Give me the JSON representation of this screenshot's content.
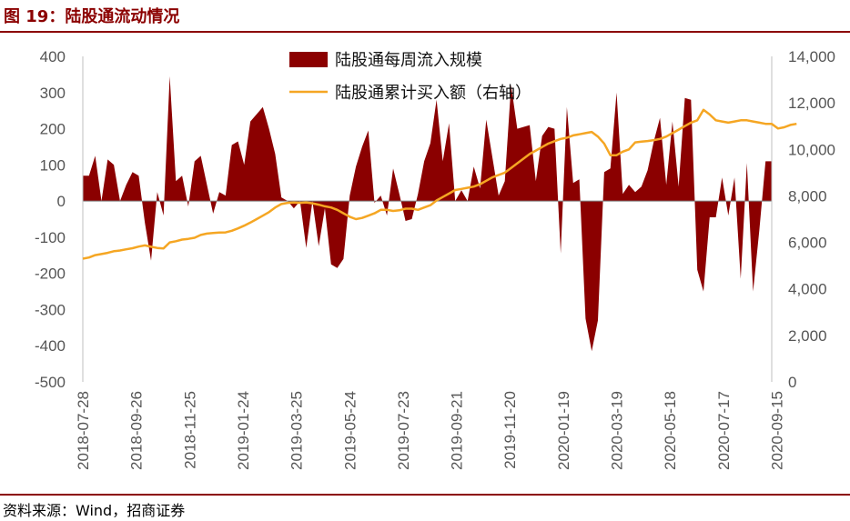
{
  "title": "图 19：陆股通流动情况",
  "source": "资料来源：Wind，招商证券",
  "colors": {
    "bar": "#8b0000",
    "line": "#f5a623",
    "accent": "#8b0000",
    "axis": "#bfbfbf"
  },
  "chart_data": {
    "type": "bar+line",
    "series": [
      {
        "name": "陆股通每周流入规模",
        "type": "bar",
        "axis": "left",
        "values": [
          70,
          70,
          125,
          0,
          115,
          100,
          0,
          45,
          80,
          70,
          -60,
          -165,
          25,
          -40,
          345,
          55,
          70,
          -15,
          110,
          125,
          45,
          -35,
          25,
          15,
          155,
          165,
          100,
          220,
          240,
          260,
          200,
          130,
          10,
          0,
          -20,
          0,
          -130,
          0,
          -125,
          -20,
          -175,
          -185,
          -160,
          15,
          95,
          150,
          195,
          -5,
          15,
          -40,
          90,
          20,
          -55,
          -50,
          20,
          110,
          160,
          280,
          110,
          215,
          0,
          30,
          0,
          95,
          35,
          225,
          120,
          15,
          55,
          320,
          200,
          205,
          210,
          55,
          180,
          205,
          200,
          -145,
          260,
          50,
          60,
          -325,
          -415,
          -330,
          80,
          90,
          300,
          20,
          45,
          25,
          40,
          85,
          165,
          230,
          45,
          220,
          40,
          285,
          280,
          -190,
          -250,
          -45,
          -45,
          65,
          -40,
          65,
          -215,
          105,
          -250,
          -80,
          110,
          110
        ],
        "x_tick_labels": [
          "2018-07-28",
          "2018-09-26",
          "2018-11-25",
          "2019-01-24",
          "2019-03-25",
          "2019-05-24",
          "2019-07-23",
          "2019-09-21",
          "2019-11-20",
          "2020-01-19",
          "2020-03-19",
          "2020-05-18",
          "2020-07-17",
          "2020-09-15"
        ]
      },
      {
        "name": "陆股通累计买入额（右轴）",
        "type": "line",
        "axis": "right",
        "values": [
          5300,
          5350,
          5450,
          5500,
          5550,
          5620,
          5650,
          5700,
          5750,
          5820,
          5870,
          5810,
          5760,
          5740,
          6000,
          6050,
          6120,
          6150,
          6200,
          6320,
          6380,
          6400,
          6420,
          6430,
          6500,
          6600,
          6720,
          6850,
          7000,
          7150,
          7300,
          7500,
          7650,
          7700,
          7710,
          7700,
          7720,
          7680,
          7620,
          7550,
          7500,
          7400,
          7250,
          7100,
          7000,
          7050,
          7150,
          7250,
          7400,
          7400,
          7350,
          7380,
          7450,
          7450,
          7400,
          7500,
          7600,
          7800,
          7950,
          8100,
          8250,
          8300,
          8350,
          8400,
          8500,
          8650,
          8800,
          8900,
          9000,
          9200,
          9400,
          9600,
          9800,
          9950,
          10100,
          10250,
          10350,
          10450,
          10500,
          10600,
          10650,
          10700,
          10750,
          10550,
          10250,
          9750,
          9750,
          9900,
          10000,
          10300,
          10330,
          10360,
          10400,
          10450,
          10550,
          10700,
          10850,
          11000,
          11150,
          11250,
          11700,
          11500,
          11250,
          11200,
          11150,
          11200,
          11250,
          11250,
          11200,
          11150,
          11100,
          11100,
          10900,
          10950,
          11050,
          11100
        ]
      }
    ],
    "y_left": {
      "range": [
        -500,
        400
      ],
      "ticks": [
        "-500",
        "-400",
        "-300",
        "-200",
        "-100",
        "0",
        "100",
        "200",
        "300",
        "400"
      ]
    },
    "y_right": {
      "range": [
        0,
        14000
      ],
      "ticks": [
        "0",
        "2,000",
        "4,000",
        "6,000",
        "8,000",
        "10,000",
        "12,000",
        "14,000"
      ]
    },
    "legend": [
      {
        "label": "陆股通每周流入规模"
      },
      {
        "label": "陆股通累计买入额（右轴）"
      }
    ],
    "legend_placement": "top-center",
    "grid": false
  }
}
